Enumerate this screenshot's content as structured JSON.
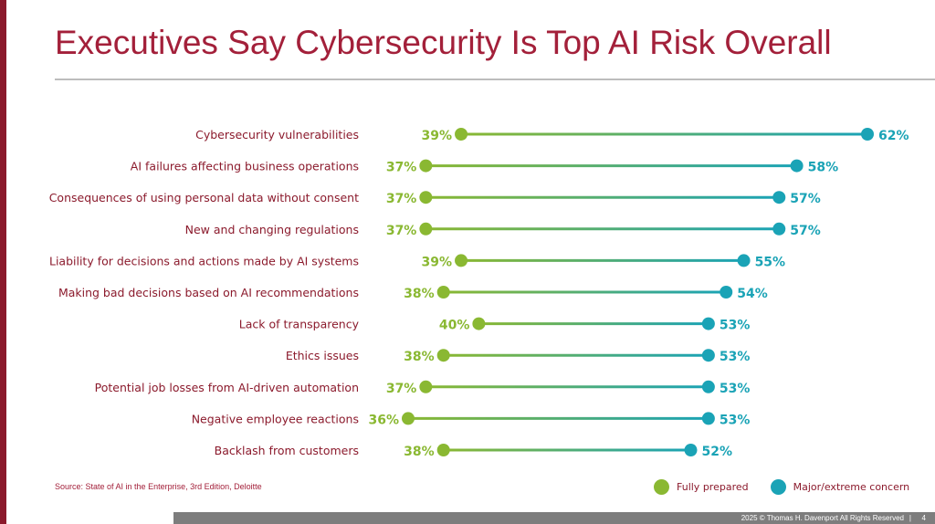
{
  "slide": {
    "title": "Executives Say Cybersecurity Is Top AI Risk Overall",
    "source": "Source: State of AI in the Enterprise, 3rd Edition, Deloitte",
    "footer": "2025 © Thomas H. Davenport All Rights Reserved",
    "footer_separator": "|",
    "page_number": "4"
  },
  "colors": {
    "title": "#a3203a",
    "category_label": "#8b1a2c",
    "fully_prepared": "#8ab832",
    "major_concern": "#1aa3b6",
    "footer_bar": "#7d7d7d"
  },
  "chart_data": {
    "type": "dumbbell",
    "xlim": [
      30,
      65
    ],
    "legend_placement": "bottom-right",
    "grid": false,
    "categories": [
      "Cybersecurity vulnerabilities",
      "AI failures affecting business operations",
      "Consequences of using personal data without consent",
      "New and changing regulations",
      "Liability for decisions and actions made by AI systems",
      "Making bad decisions based on AI recommendations",
      "Lack of transparency",
      "Ethics issues",
      "Potential job losses from AI-driven automation",
      "Negative employee reactions",
      "Backlash from customers"
    ],
    "series": [
      {
        "name": "Fully prepared",
        "values": [
          39,
          37,
          37,
          37,
          39,
          38,
          40,
          38,
          37,
          36,
          38
        ],
        "labels": [
          "39%",
          "37%",
          "37%",
          "37%",
          "39%",
          "38%",
          "40%",
          "38%",
          "37%",
          "36%",
          "38%"
        ]
      },
      {
        "name": "Major/extreme concern",
        "values": [
          62,
          58,
          57,
          57,
          55,
          54,
          53,
          53,
          53,
          53,
          52
        ],
        "labels": [
          "62%",
          "58%",
          "57%",
          "57%",
          "55%",
          "54%",
          "53%",
          "53%",
          "53%",
          "53%",
          "52%"
        ]
      }
    ]
  }
}
